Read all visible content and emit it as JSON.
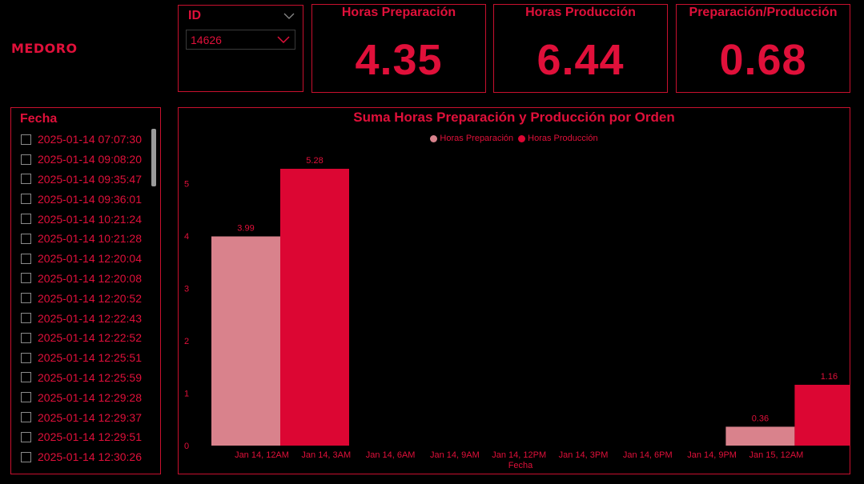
{
  "brand": {
    "logo_text": "MEDORO"
  },
  "id_slicer": {
    "title": "ID",
    "selected": "14626"
  },
  "kpis": {
    "prep": {
      "title": "Horas Preparación",
      "value": "4.35"
    },
    "prod": {
      "title": "Horas Producción",
      "value": "6.44"
    },
    "ratio": {
      "title": "Preparación/Producción",
      "value": "0.68"
    }
  },
  "fecha_slicer": {
    "title": "Fecha",
    "items": [
      "2025-01-14 07:07:30",
      "2025-01-14 09:08:20",
      "2025-01-14 09:35:47",
      "2025-01-14 09:36:01",
      "2025-01-14 10:21:24",
      "2025-01-14 10:21:28",
      "2025-01-14 12:20:04",
      "2025-01-14 12:20:08",
      "2025-01-14 12:20:52",
      "2025-01-14 12:22:43",
      "2025-01-14 12:22:52",
      "2025-01-14 12:25:51",
      "2025-01-14 12:25:59",
      "2025-01-14 12:29:28",
      "2025-01-14 12:29:37",
      "2025-01-14 12:29:51",
      "2025-01-14 12:30:26"
    ]
  },
  "chart_data": {
    "type": "bar",
    "title": "Suma Horas Preparación y Producción por Orden",
    "xlabel": "Fecha",
    "ylabel": "",
    "ylim": [
      0,
      5.6
    ],
    "yticks": [
      0,
      1,
      2,
      3,
      4,
      5
    ],
    "xticks": [
      "Jan 14, 12AM",
      "Jan 14, 3AM",
      "Jan 14, 6AM",
      "Jan 14, 9AM",
      "Jan 14, 12PM",
      "Jan 14, 3PM",
      "Jan 14, 6PM",
      "Jan 14, 9PM",
      "Jan 15, 12AM"
    ],
    "legend_position": "top-center",
    "series": [
      {
        "name": "Horas Preparación",
        "color": "#d9828c",
        "points": [
          {
            "x": "Jan 14, 12AM",
            "value": 3.99
          },
          {
            "x": "Jan 15, 12AM",
            "value": 0.36
          }
        ]
      },
      {
        "name": "Horas Producción",
        "color": "#dc0633",
        "points": [
          {
            "x": "Jan 14, 12AM",
            "value": 5.28
          },
          {
            "x": "Jan 15, 12AM",
            "value": 1.16
          }
        ]
      }
    ]
  },
  "colors": {
    "accent": "#e0103a",
    "border": "#c8102e",
    "background": "#000000"
  }
}
